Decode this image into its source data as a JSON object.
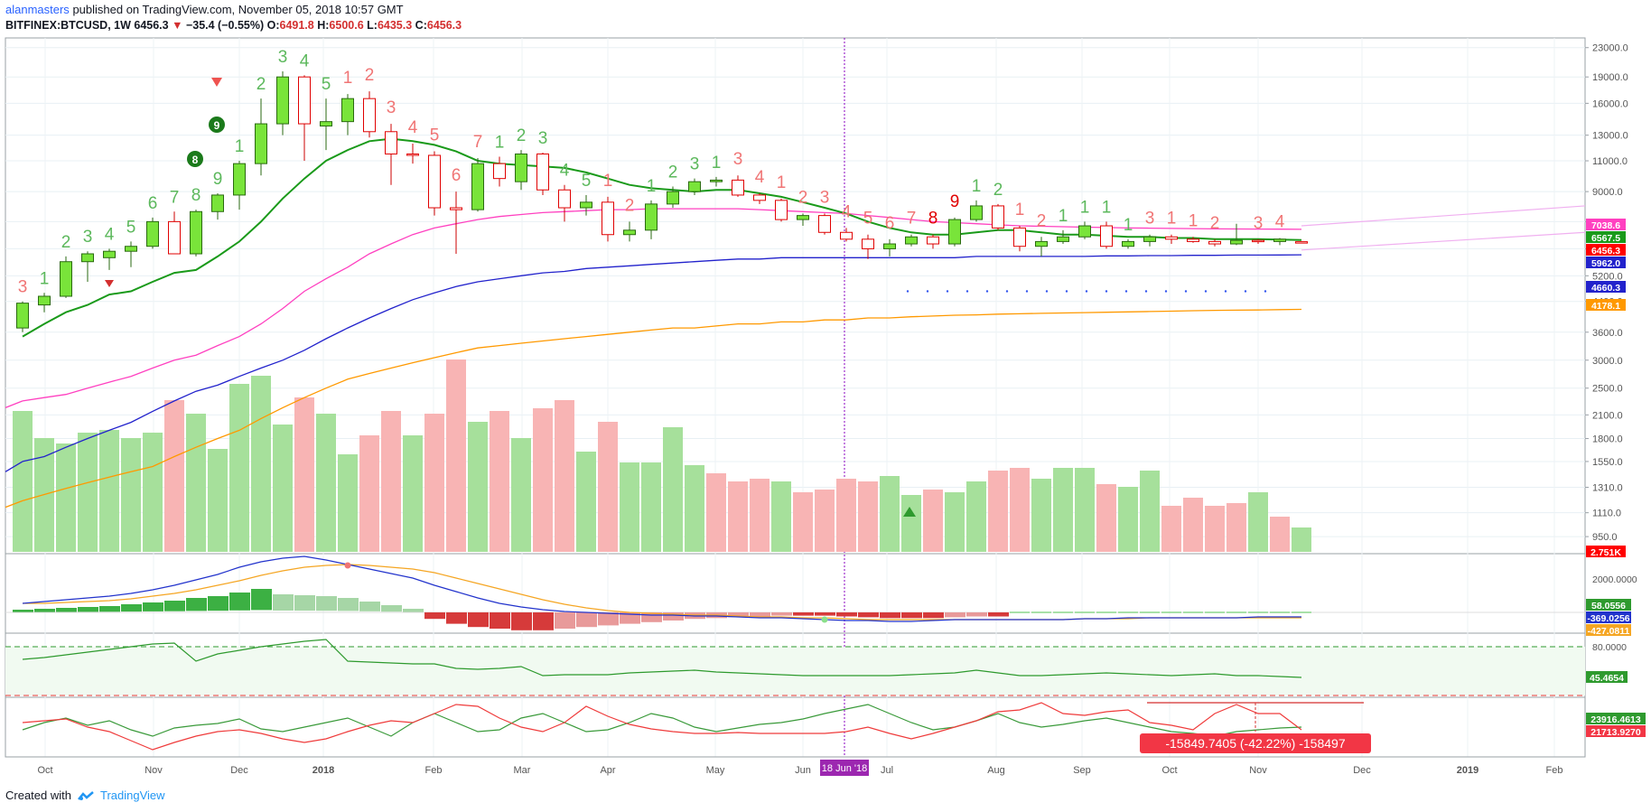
{
  "header": {
    "publisher": "alanmasters",
    "published_text": "published on TradingView.com, November 05, 2018 10:57 GMT",
    "symbol": "BITFINEX:BTCUSD, 1W",
    "last": "6456.3",
    "change": "−35.4 (−0.55%)",
    "o_label": "O:",
    "o": "6491.8",
    "h_label": "H:",
    "h": "6500.6",
    "l_label": "L:",
    "l": "6435.3",
    "c_label": "C:",
    "c": "6456.3"
  },
  "footer": {
    "created_with": "Created with",
    "brand": "TradingView"
  },
  "colors": {
    "up": "#79e43a",
    "down": "#ff0000",
    "ema_short": "#1a9a1a",
    "ema_mid": "#ff40c0",
    "ema_long": "#2222cc",
    "ema_slow": "#ff9900",
    "vol_up": "#a6e09b",
    "vol_down": "#f8b4b4"
  },
  "chart_data": [
    {
      "type": "candlestick",
      "title": "BITFINEX:BTCUSD, 1W",
      "scale": "log",
      "price_axis_labels": [
        "23000.0",
        "19000.0",
        "16000.0",
        "13000.0",
        "11000.0",
        "9000.0",
        "7400.0",
        "6200.0",
        "5200.0",
        "4400.0",
        "3600.0",
        "3000.0",
        "2500.0",
        "2100.0",
        "1800.0",
        "1550.0",
        "1310.0",
        "1110.0",
        "950.0"
      ],
      "time_axis_labels": [
        "Oct",
        "Nov",
        "Dec",
        "2018",
        "Feb",
        "Mar",
        "Apr",
        "May",
        "Jun",
        "Jul",
        "Aug",
        "Sep",
        "Oct",
        "Nov",
        "Dec",
        "2019",
        "Feb"
      ],
      "marker_label": "18 Jun '18",
      "price_tags": [
        {
          "value": "7038.6",
          "color": "#ff40c0"
        },
        {
          "value": "6567.5",
          "color": "#1a9a1a"
        },
        {
          "value": "6456.3",
          "color": "#ff0000"
        },
        {
          "value": "5962.0",
          "color": "#2222cc"
        },
        {
          "value": "4660.3",
          "color": "#2222cc"
        },
        {
          "value": "4178.1",
          "color": "#ff9900"
        },
        {
          "value": "2.751K",
          "color": "#ff0000"
        }
      ],
      "candles": [
        {
          "o": 3700,
          "h": 4400,
          "l": 3600,
          "c": 4350
        },
        {
          "o": 4300,
          "h": 4650,
          "l": 4100,
          "c": 4550
        },
        {
          "o": 4550,
          "h": 5900,
          "l": 4500,
          "c": 5700
        },
        {
          "o": 5700,
          "h": 6100,
          "l": 5000,
          "c": 6000
        },
        {
          "o": 5850,
          "h": 6200,
          "l": 5400,
          "c": 6100
        },
        {
          "o": 6100,
          "h": 6500,
          "l": 5500,
          "c": 6300
        },
        {
          "o": 6300,
          "h": 7600,
          "l": 6200,
          "c": 7400
        },
        {
          "o": 7400,
          "h": 7900,
          "l": 6000,
          "c": 6000
        },
        {
          "o": 6000,
          "h": 8000,
          "l": 5900,
          "c": 7900
        },
        {
          "o": 7900,
          "h": 8900,
          "l": 7500,
          "c": 8800
        },
        {
          "o": 8800,
          "h": 11000,
          "l": 8000,
          "c": 10800
        },
        {
          "o": 10800,
          "h": 16500,
          "l": 10000,
          "c": 14000
        },
        {
          "o": 14000,
          "h": 19700,
          "l": 13000,
          "c": 19000
        },
        {
          "o": 19000,
          "h": 19200,
          "l": 11000,
          "c": 14000
        },
        {
          "o": 13800,
          "h": 16500,
          "l": 11800,
          "c": 14200
        },
        {
          "o": 14200,
          "h": 17000,
          "l": 13000,
          "c": 16500
        },
        {
          "o": 16500,
          "h": 17300,
          "l": 12800,
          "c": 13300
        },
        {
          "o": 13300,
          "h": 14000,
          "l": 9400,
          "c": 11500
        },
        {
          "o": 11500,
          "h": 12300,
          "l": 10800,
          "c": 11400
        },
        {
          "o": 11400,
          "h": 11700,
          "l": 7700,
          "c": 8100
        },
        {
          "o": 8100,
          "h": 9000,
          "l": 6000,
          "c": 8000
        },
        {
          "o": 8000,
          "h": 11200,
          "l": 7900,
          "c": 10800
        },
        {
          "o": 10800,
          "h": 11300,
          "l": 9300,
          "c": 9800
        },
        {
          "o": 9600,
          "h": 11800,
          "l": 9100,
          "c": 11500
        },
        {
          "o": 11500,
          "h": 11600,
          "l": 8800,
          "c": 9100
        },
        {
          "o": 9100,
          "h": 9400,
          "l": 7400,
          "c": 8100
        },
        {
          "o": 8100,
          "h": 8800,
          "l": 7700,
          "c": 8400
        },
        {
          "o": 8400,
          "h": 8700,
          "l": 6500,
          "c": 6800
        },
        {
          "o": 6800,
          "h": 7400,
          "l": 6500,
          "c": 7000
        },
        {
          "o": 7000,
          "h": 8500,
          "l": 6600,
          "c": 8300
        },
        {
          "o": 8300,
          "h": 9300,
          "l": 8100,
          "c": 9000
        },
        {
          "o": 9000,
          "h": 9800,
          "l": 8800,
          "c": 9600
        },
        {
          "o": 9600,
          "h": 9900,
          "l": 9300,
          "c": 9700
        },
        {
          "o": 9700,
          "h": 10000,
          "l": 8700,
          "c": 8800
        },
        {
          "o": 8800,
          "h": 8900,
          "l": 8300,
          "c": 8500
        },
        {
          "o": 8500,
          "h": 8600,
          "l": 7400,
          "c": 7500
        },
        {
          "o": 7500,
          "h": 7800,
          "l": 7200,
          "c": 7700
        },
        {
          "o": 7700,
          "h": 7800,
          "l": 6800,
          "c": 6900
        },
        {
          "o": 6900,
          "h": 7100,
          "l": 6500,
          "c": 6600
        },
        {
          "o": 6600,
          "h": 6800,
          "l": 5800,
          "c": 6200
        },
        {
          "o": 6200,
          "h": 6600,
          "l": 5900,
          "c": 6400
        },
        {
          "o": 6400,
          "h": 6800,
          "l": 6300,
          "c": 6700
        },
        {
          "o": 6700,
          "h": 6800,
          "l": 6200,
          "c": 6400
        },
        {
          "o": 6400,
          "h": 7600,
          "l": 6300,
          "c": 7500
        },
        {
          "o": 7500,
          "h": 8500,
          "l": 7400,
          "c": 8200
        },
        {
          "o": 8200,
          "h": 8300,
          "l": 7000,
          "c": 7100
        },
        {
          "o": 7100,
          "h": 7200,
          "l": 6100,
          "c": 6300
        },
        {
          "o": 6300,
          "h": 6700,
          "l": 5900,
          "c": 6500
        },
        {
          "o": 6500,
          "h": 7000,
          "l": 6400,
          "c": 6700
        },
        {
          "o": 6700,
          "h": 7400,
          "l": 6600,
          "c": 7200
        },
        {
          "o": 7200,
          "h": 7400,
          "l": 6200,
          "c": 6300
        },
        {
          "o": 6300,
          "h": 6600,
          "l": 6200,
          "c": 6500
        },
        {
          "o": 6500,
          "h": 6800,
          "l": 6300,
          "c": 6700
        },
        {
          "o": 6700,
          "h": 6800,
          "l": 6400,
          "c": 6600
        },
        {
          "o": 6600,
          "h": 6700,
          "l": 6450,
          "c": 6500
        },
        {
          "o": 6500,
          "h": 6600,
          "l": 6300,
          "c": 6400
        },
        {
          "o": 6400,
          "h": 7300,
          "l": 6350,
          "c": 6550
        },
        {
          "o": 6550,
          "h": 6600,
          "l": 6400,
          "c": 6500
        },
        {
          "o": 6500,
          "h": 6650,
          "l": 6350,
          "c": 6600
        },
        {
          "o": 6491.8,
          "h": 6500.6,
          "l": 6435.3,
          "c": 6456.3
        }
      ],
      "ema_short": [
        3500,
        3800,
        4100,
        4300,
        4600,
        4700,
        5000,
        5300,
        5400,
        5900,
        6500,
        7400,
        8600,
        9800,
        11000,
        11800,
        12500,
        12700,
        12500,
        12200,
        11700,
        11000,
        10800,
        10700,
        10600,
        10500,
        10200,
        9800,
        9400,
        9200,
        9100,
        9000,
        9100,
        9100,
        8900,
        8700,
        8400,
        8100,
        7800,
        7400,
        7100,
        6900,
        6800,
        6800,
        6900,
        7000,
        7000,
        6900,
        6800,
        6800,
        6750,
        6700,
        6700,
        6650,
        6650,
        6600,
        6600,
        6600,
        6580,
        6567.5
      ],
      "ema_mid": [
        2300,
        2350,
        2400,
        2500,
        2600,
        2700,
        2850,
        3000,
        3100,
        3300,
        3500,
        3800,
        4200,
        4700,
        5100,
        5500,
        6000,
        6400,
        6800,
        7100,
        7300,
        7500,
        7650,
        7750,
        7850,
        7900,
        7950,
        8000,
        8000,
        8050,
        8050,
        8050,
        8050,
        8050,
        8000,
        7950,
        7900,
        7850,
        7800,
        7700,
        7600,
        7500,
        7400,
        7350,
        7300,
        7250,
        7200,
        7180,
        7160,
        7140,
        7120,
        7100,
        7090,
        7080,
        7070,
        7060,
        7055,
        7050,
        7045,
        7038.6
      ],
      "ema_long": [
        1550,
        1600,
        1700,
        1800,
        1900,
        2000,
        2150,
        2300,
        2450,
        2550,
        2700,
        2850,
        3000,
        3200,
        3450,
        3700,
        3950,
        4200,
        4450,
        4650,
        4850,
        5000,
        5100,
        5200,
        5300,
        5350,
        5450,
        5500,
        5550,
        5600,
        5650,
        5700,
        5750,
        5800,
        5800,
        5850,
        5850,
        5850,
        5850,
        5850,
        5850,
        5850,
        5850,
        5850,
        5900,
        5900,
        5900,
        5900,
        5900,
        5900,
        5920,
        5920,
        5930,
        5930,
        5940,
        5940,
        5950,
        5950,
        5955,
        5962
      ],
      "ema_slow": [
        1200,
        1250,
        1300,
        1350,
        1400,
        1450,
        1500,
        1600,
        1700,
        1800,
        1900,
        2050,
        2200,
        2350,
        2500,
        2650,
        2750,
        2850,
        2950,
        3050,
        3150,
        3250,
        3300,
        3350,
        3400,
        3450,
        3500,
        3550,
        3600,
        3650,
        3700,
        3700,
        3750,
        3800,
        3800,
        3850,
        3850,
        3900,
        3900,
        3950,
        3950,
        3980,
        4000,
        4020,
        4030,
        4050,
        4060,
        4070,
        4080,
        4090,
        4100,
        4110,
        4120,
        4130,
        4140,
        4150,
        4155,
        4160,
        4170,
        4178.1
      ],
      "td_labels_up": [
        "3",
        "1",
        "2",
        "3",
        "4",
        "5",
        "6",
        "7",
        "8",
        "9",
        "1",
        "2",
        "3",
        "4",
        "5",
        "1",
        "2",
        "3",
        "4",
        "5",
        "1",
        "2",
        "3",
        "1",
        "1",
        "2",
        "1",
        "1",
        "1",
        "1"
      ],
      "td_labels_down": [
        "1",
        "2",
        "3",
        "4",
        "5",
        "6",
        "7",
        "1",
        "2",
        "3",
        "4",
        "1",
        "2",
        "3",
        "4",
        "5",
        "6",
        "7",
        "8",
        "9",
        "1",
        "2",
        "3",
        "1",
        "1",
        "2",
        "3",
        "4"
      ]
    },
    {
      "type": "bar",
      "title": "Volume",
      "values": [
        52,
        42,
        40,
        44,
        45,
        42,
        44,
        56,
        51,
        38,
        62,
        65,
        47,
        57,
        51,
        36,
        43,
        52,
        43,
        51,
        71,
        48,
        52,
        42,
        53,
        56,
        37,
        48,
        33,
        33,
        46,
        32,
        29,
        26,
        27,
        26,
        22,
        23,
        27,
        26,
        28,
        21,
        23,
        22,
        26,
        30,
        31,
        27,
        31,
        31,
        25,
        24,
        30,
        17,
        20,
        17,
        18,
        22,
        13,
        9
      ],
      "up": [
        true,
        true,
        true,
        true,
        true,
        true,
        true,
        false,
        true,
        true,
        true,
        true,
        true,
        false,
        true,
        true,
        false,
        false,
        true,
        false,
        false,
        true,
        false,
        true,
        false,
        false,
        true,
        false,
        true,
        true,
        true,
        true,
        false,
        false,
        false,
        true,
        false,
        false,
        false,
        false,
        true,
        true,
        false,
        true,
        true,
        false,
        false,
        true,
        true,
        true,
        false,
        true,
        true,
        false,
        false,
        false,
        false,
        true,
        false,
        true
      ]
    },
    {
      "type": "line",
      "title": "MACD",
      "y_labels": [
        "2000.0000",
        "58.0556",
        "-369.0256",
        "-427.0811"
      ]
    },
    {
      "type": "line",
      "title": "Oscillator",
      "y_labels": [
        "80.0000",
        "45.4654"
      ]
    },
    {
      "type": "line",
      "title": "Dual series",
      "y_labels": [
        "23916.4613",
        "21713.9270"
      ],
      "measure_label": "-15849.7405 (-42.22%) -158497"
    }
  ]
}
